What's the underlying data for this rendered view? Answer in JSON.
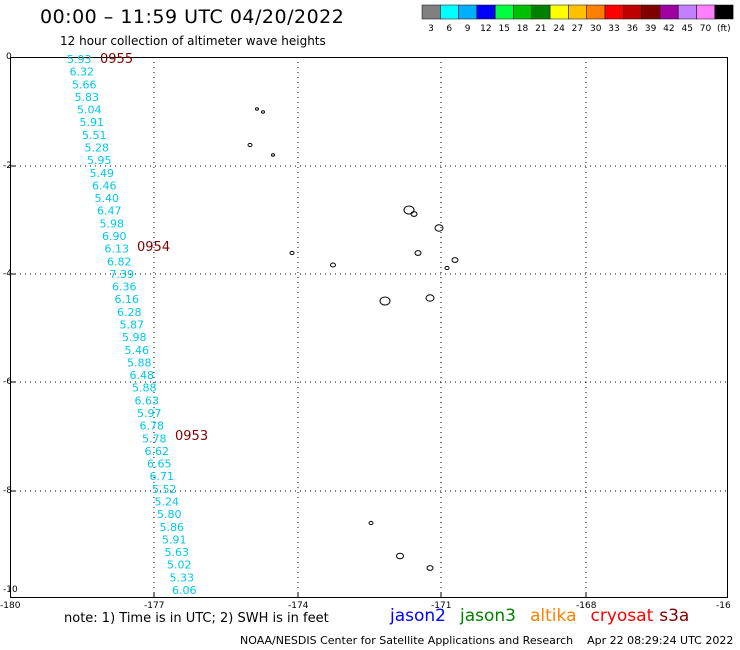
{
  "header": {
    "title": "00:00 – 11:59 UTC 04/20/2022",
    "subtitle": "12 hour collection of altimeter wave heights"
  },
  "legend": {
    "colors": [
      "#808080",
      "#00ffff",
      "#00b0ff",
      "#0000ff",
      "#00ff40",
      "#00c000",
      "#008000",
      "#ffff00",
      "#ffc000",
      "#ff8000",
      "#ff0000",
      "#c00000",
      "#800000",
      "#a000a0",
      "#c080ff",
      "#ff80ff",
      "#000000"
    ],
    "labels": [
      "3",
      "6",
      "9",
      "12",
      "15",
      "18",
      "21",
      "24",
      "27",
      "30",
      "33",
      "36",
      "39",
      "42",
      "45",
      "70",
      "(ft)"
    ]
  },
  "axes": {
    "lon_labels": [
      "-180",
      "-177",
      "-174",
      "-171",
      "-168",
      "-16"
    ],
    "lat_labels": [
      "0",
      "-2",
      "-4",
      "-6",
      "-8",
      "-10"
    ]
  },
  "pass_labels": [
    "0955",
    "0954",
    "0953"
  ],
  "wave_heights": [
    "5.93",
    "6.32",
    "5.66",
    "5.83",
    "5.04",
    "5.91",
    "5.51",
    "5.28",
    "5.95",
    "5.49",
    "6.46",
    "5.40",
    "6.47",
    "5.98",
    "6.90",
    "6.13",
    "6.82",
    "7.39",
    "6.36",
    "6.16",
    "6.28",
    "5.87",
    "5.98",
    "5.46",
    "5.88",
    "6.48",
    "5.88",
    "6.63",
    "5.97",
    "6.78",
    "5.78",
    "6.62",
    "6.65",
    "6.71",
    "5.52",
    "5.24",
    "5.80",
    "5.86",
    "5.91",
    "5.63",
    "5.02",
    "5.33",
    "6.06"
  ],
  "footer": {
    "note": "note: 1) Time is in UTC; 2) SWH is in feet",
    "satellites": [
      {
        "name": "jason2",
        "color": "#0000ff"
      },
      {
        "name": "jason3",
        "color": "#008000"
      },
      {
        "name": "altika",
        "color": "#ff8000"
      },
      {
        "name": "cryosat",
        "color": "#ff0000"
      },
      {
        "name": "s3a",
        "color": "#800000"
      }
    ],
    "credit": "NOAA/NESDIS Center for Satellite Applications and Research",
    "timestamp": "Apr 22 08:29:24 UTC 2022"
  }
}
